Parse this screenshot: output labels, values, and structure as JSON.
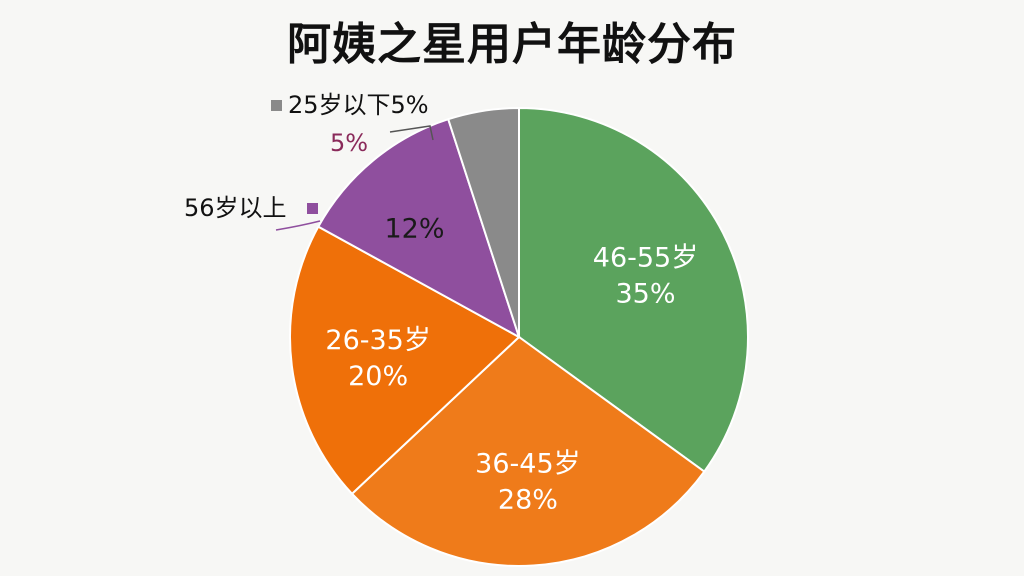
{
  "chart_data": {
    "type": "pie",
    "title": "阿姨之星用户年龄分布",
    "slices": [
      {
        "name": "46-55岁",
        "value": 35,
        "label": "35%",
        "color": "#5ba35d",
        "text_color": "#ffffff",
        "callout": false
      },
      {
        "name": "36-45岁",
        "value": 28,
        "label": "28%",
        "color": "#ef7b1a",
        "text_color": "#ffffff",
        "callout": false
      },
      {
        "name": "26-35岁",
        "value": 20,
        "label": "20%",
        "color": "#ef7009",
        "text_color": "#ffffff",
        "callout": false
      },
      {
        "name": "56岁以上",
        "value": 12,
        "label": "12%",
        "color": "#8f4f9e",
        "text_color": "#1a1a1a",
        "callout": true
      },
      {
        "name": "25岁以下",
        "value": 5,
        "label": "5%",
        "color": "#8a8a8a",
        "text_color": "#8a2a5a",
        "callout": true
      }
    ],
    "callout_text": {
      "under25": "25岁以下5%",
      "under25_pct": "5%",
      "over56": "56岁以上"
    }
  }
}
